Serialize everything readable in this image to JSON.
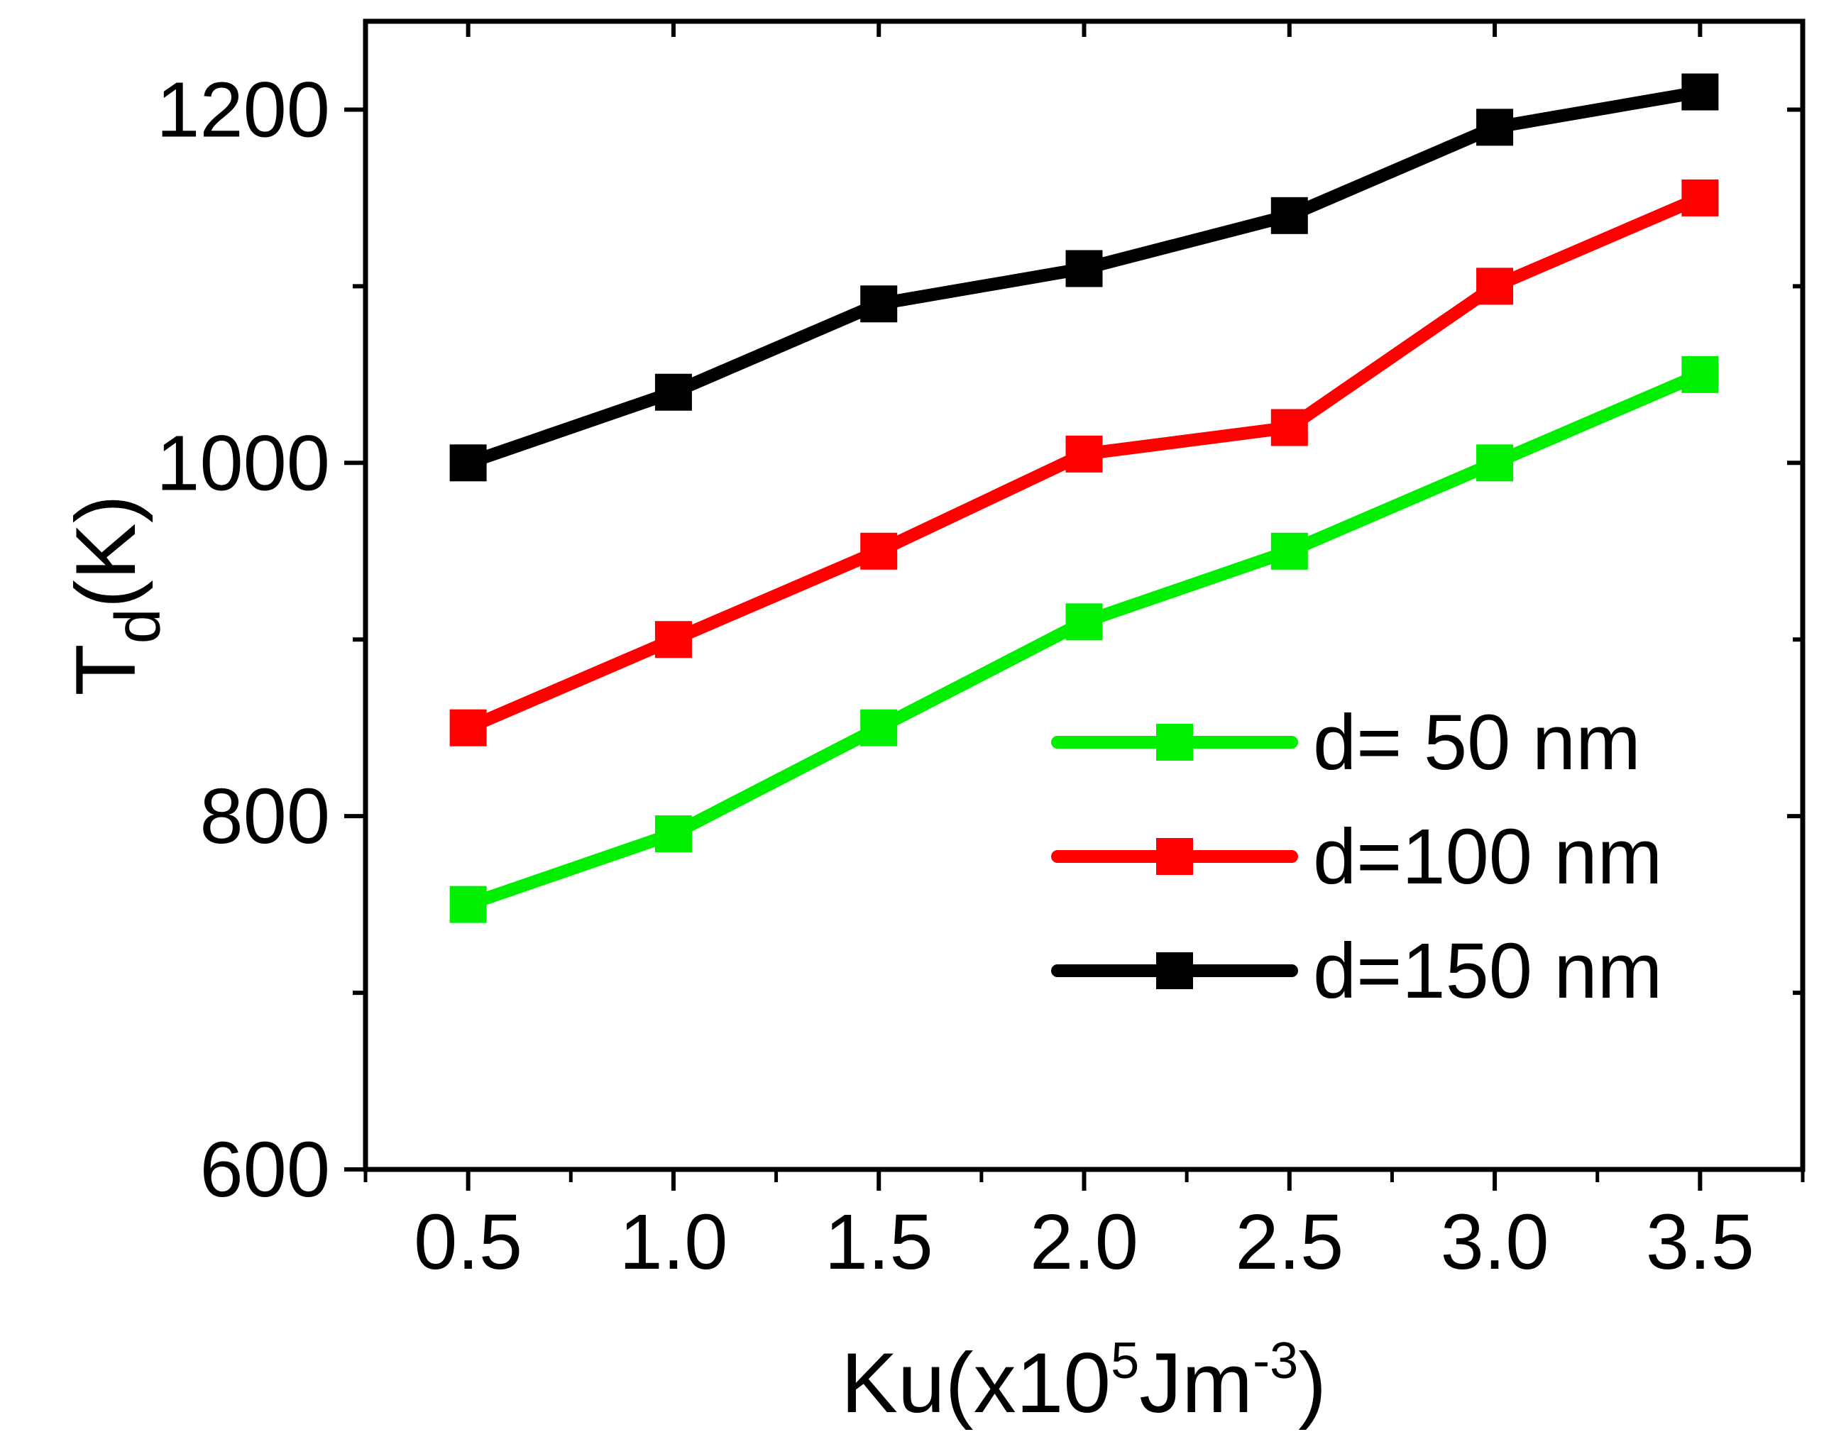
{
  "chart_data": {
    "type": "line",
    "title": "",
    "xlabel": {
      "base": "Ku(x10",
      "exp": "5",
      "unit": "Jm",
      "unit_exp": "-3",
      "close": ")"
    },
    "ylabel": {
      "base": "T",
      "sub": "d",
      "unit": "(K)"
    },
    "x": [
      0.5,
      1.0,
      1.5,
      2.0,
      2.5,
      3.0,
      3.5
    ],
    "xticks": [
      "0.5",
      "1.0",
      "1.5",
      "2.0",
      "2.5",
      "3.0",
      "3.5"
    ],
    "yticks": [
      "600",
      "800",
      "1000",
      "1200"
    ],
    "xlim": [
      0.25,
      3.75
    ],
    "ylim": [
      600,
      1250
    ],
    "grid": false,
    "legend_position": "center-right",
    "series": [
      {
        "name": "d= 50 nm",
        "color": "#00ee00",
        "values": [
          750,
          790,
          850,
          910,
          950,
          1000,
          1050
        ]
      },
      {
        "name": "d=100 nm",
        "color": "#ff0000",
        "values": [
          850,
          900,
          950,
          1005,
          1020,
          1100,
          1150
        ]
      },
      {
        "name": "d=150 nm",
        "color": "#000000",
        "values": [
          1000,
          1040,
          1090,
          1110,
          1140,
          1190,
          1210
        ]
      }
    ]
  }
}
